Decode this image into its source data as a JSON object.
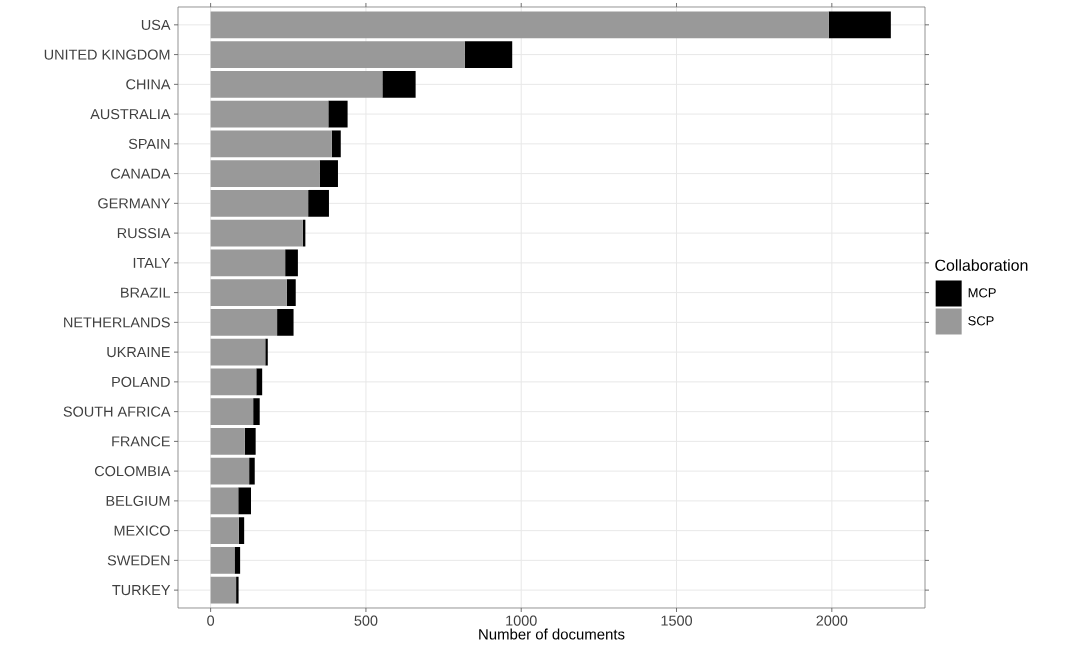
{
  "chart_data": {
    "type": "bar",
    "orientation": "horizontal",
    "stacked": true,
    "xlabel": "Number of documents",
    "legend_title": "Collaboration",
    "categories": [
      "USA",
      "UNITED KINGDOM",
      "CHINA",
      "AUSTRALIA",
      "SPAIN",
      "CANADA",
      "GERMANY",
      "RUSSIA",
      "ITALY",
      "BRAZIL",
      "NETHERLANDS",
      "UKRAINE",
      "POLAND",
      "SOUTH AFRICA",
      "FRANCE",
      "COLOMBIA",
      "BELGIUM",
      "MEXICO",
      "SWEDEN",
      "TURKEY"
    ],
    "series": [
      {
        "name": "SCP",
        "color": "#999999",
        "values": [
          1990,
          818,
          553,
          379,
          390,
          351,
          314,
          297,
          240,
          245,
          214,
          176,
          147,
          137,
          110,
          124,
          89,
          91,
          77,
          82
        ]
      },
      {
        "name": "MCP",
        "color": "#000000",
        "values": [
          200,
          153,
          107,
          62,
          29,
          59,
          67,
          8,
          41,
          29,
          53,
          8,
          19,
          21,
          35,
          18,
          41,
          17,
          18,
          8
        ]
      }
    ],
    "xlim": [
      -105,
      2300
    ],
    "xticks": [
      0,
      500,
      1000,
      1500,
      2000
    ],
    "grid": true,
    "legend": "right"
  }
}
